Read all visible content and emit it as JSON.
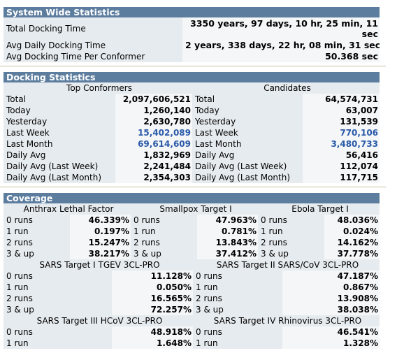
{
  "system": {
    "title": "System Wide Statistics",
    "rows": [
      {
        "label": "Total Docking Time",
        "value_line1": "3350 years, 97 days, 10 hr, 25 min, 11",
        "value_line2": "sec"
      },
      {
        "label": "Avg Daily Docking Time",
        "value": "2 years, 338 days, 22 hr, 08 min, 31 sec"
      },
      {
        "label": "Avg Docking Time Per Conformer",
        "value": "50.368 sec"
      }
    ]
  },
  "docking": {
    "title": "Docking Statistics",
    "col1_header": "Top Conformers",
    "col2_header": "Candidates",
    "rows": [
      {
        "label": "Total",
        "conf": "2,097,606,521",
        "cand": "64,574,731",
        "link": false
      },
      {
        "label": "Today",
        "conf": "1,260,140",
        "cand": "63,007",
        "link": false
      },
      {
        "label": "Yesterday",
        "conf": "2,630,780",
        "cand": "131,539",
        "link": false
      },
      {
        "label": "Last Week",
        "conf": "15,402,089",
        "cand": "770,106",
        "link": true
      },
      {
        "label": "Last Month",
        "conf": "69,614,609",
        "cand": "3,480,733",
        "link": true
      },
      {
        "label": "Daily Avg",
        "conf": "1,832,969",
        "cand": "56,416",
        "link": false
      },
      {
        "label": "Daily Avg (Last Week)",
        "conf": "2,241,484",
        "cand": "112,074",
        "link": false
      },
      {
        "label": "Daily Avg (Last Month)",
        "conf": "2,354,303",
        "cand": "117,715",
        "link": false
      }
    ]
  },
  "coverage": {
    "title": "Coverage",
    "run_labels": [
      "0 runs",
      "1 run",
      "2 runs",
      "3 & up"
    ],
    "group1": [
      {
        "name": "Anthrax Lethal Factor",
        "values": [
          "46.339%",
          "0.197%",
          "15.247%",
          "38.217%"
        ]
      },
      {
        "name": "Smallpox Target I",
        "values": [
          "47.963%",
          "0.781%",
          "13.843%",
          "37.412%"
        ]
      },
      {
        "name": "Ebola Target I",
        "values": [
          "48.036%",
          "0.024%",
          "14.162%",
          "37.778%"
        ]
      }
    ],
    "group2": [
      {
        "name": "SARS Target I TGEV 3CL-PRO",
        "values": [
          "11.128%",
          "0.050%",
          "16.565%",
          "72.257%"
        ]
      },
      {
        "name": "SARS Target II SARS/CoV 3CL-PRO",
        "values": [
          "47.187%",
          "0.867%",
          "13.908%",
          "38.038%"
        ]
      }
    ],
    "group3": [
      {
        "name": "SARS Target III HCoV 3CL-PRO",
        "values": [
          "48.918%",
          "1.648%"
        ]
      },
      {
        "name": "SARS Target IV Rhinovirus 3CL-PRO",
        "values": [
          "46.541%",
          "1.328%"
        ]
      }
    ]
  }
}
